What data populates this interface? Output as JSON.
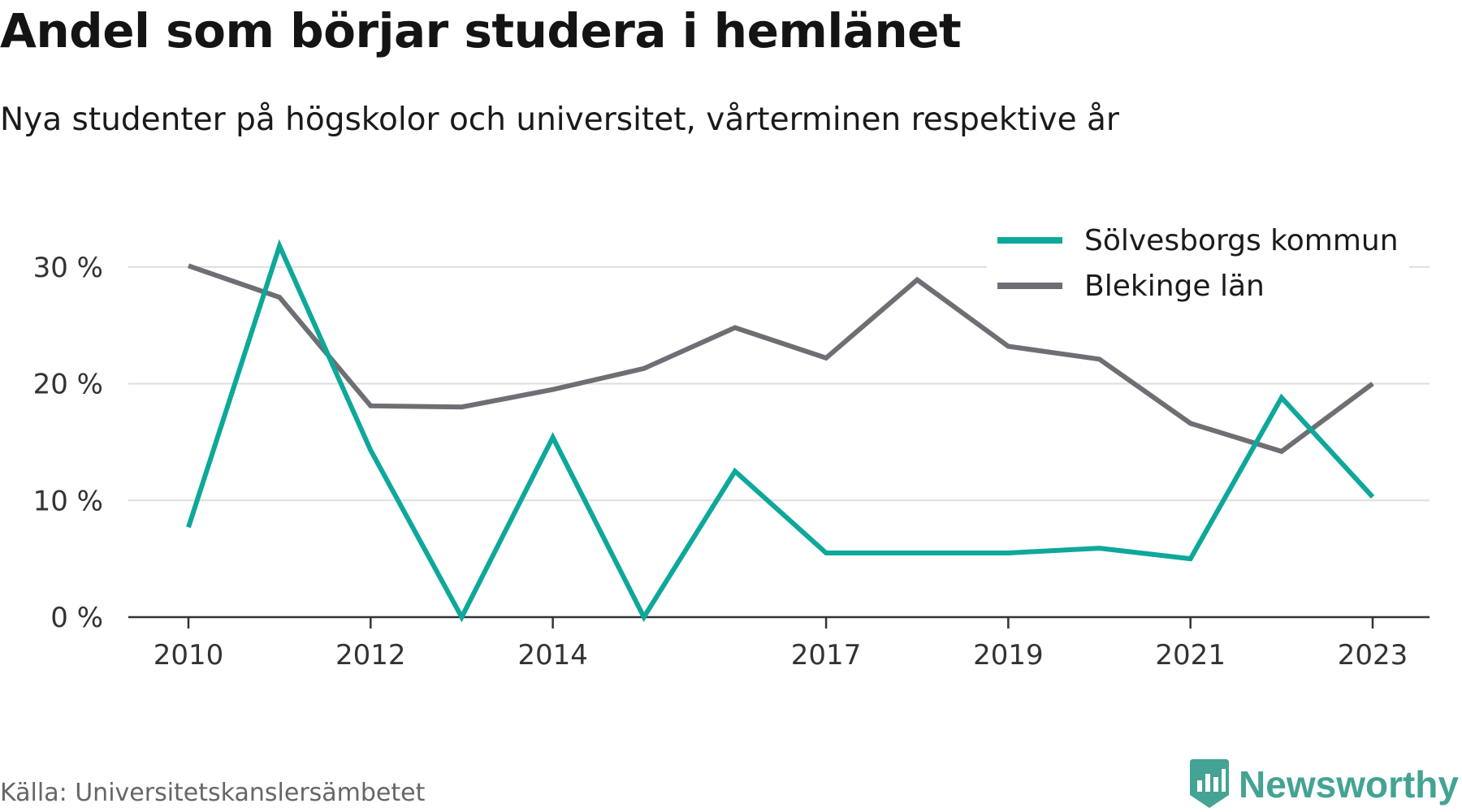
{
  "title": "Andel som börjar studera i hemlänet",
  "subtitle": "Nya studenter på högskolor och universitet, vårterminen respektive år",
  "source": "Källa: Universitetskanslersämbetet",
  "brand": {
    "name": "Newsworthy",
    "color": "#44a394",
    "icon": "newsworthy-bar-chart-icon"
  },
  "chart_data": {
    "type": "line",
    "x": [
      2010,
      2011,
      2012,
      2013,
      2014,
      2015,
      2016,
      2017,
      2018,
      2019,
      2020,
      2021,
      2022,
      2023
    ],
    "x_tick_labels": [
      "2010",
      "2012",
      "2014",
      "2017",
      "2019",
      "2021",
      "2023"
    ],
    "y_ticks": [
      0,
      10,
      20,
      30
    ],
    "y_tick_labels": [
      "0 %",
      "10 %",
      "20 %",
      "30 %"
    ],
    "ylim": [
      0,
      32
    ],
    "grid": "horizontal",
    "legend_position": "top-right",
    "series": [
      {
        "name": "Sölvesborgs kommun",
        "color": "#0ea89a",
        "values": [
          7.7,
          31.8,
          14.3,
          0,
          15.4,
          0,
          12.5,
          5.5,
          5.5,
          5.5,
          5.9,
          5.0,
          18.8,
          10.3
        ]
      },
      {
        "name": "Blekinge län",
        "color": "#6e6e74",
        "values": [
          30.1,
          27.4,
          18.1,
          18.0,
          19.5,
          21.3,
          24.8,
          22.2,
          28.9,
          23.2,
          22.1,
          16.6,
          14.2,
          20.0
        ]
      }
    ]
  }
}
